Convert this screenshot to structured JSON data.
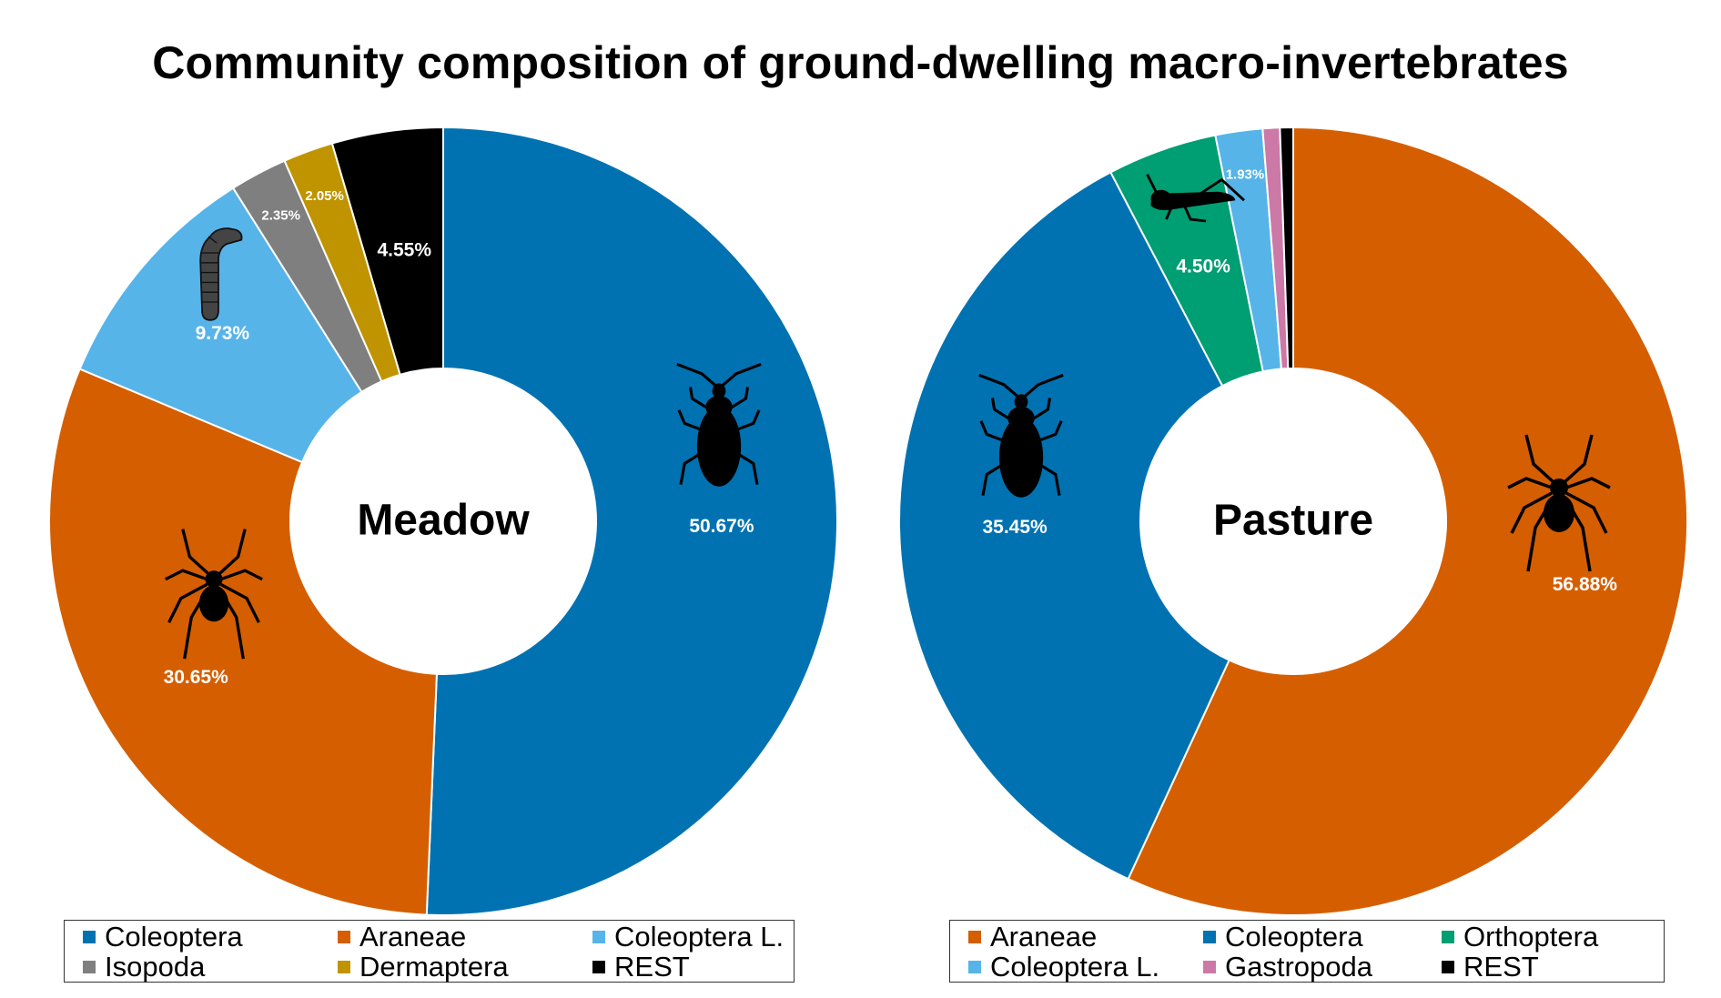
{
  "title": "Community composition of ground-dwelling macro-invertebrates",
  "chart_data": [
    {
      "type": "pie",
      "donut": true,
      "center_label": "Meadow",
      "slices": [
        {
          "name": "Coleoptera",
          "value": 50.67,
          "label": "50.67%",
          "color": "#0072B2"
        },
        {
          "name": "Araneae",
          "value": 30.65,
          "label": "30.65%",
          "color": "#D55E00"
        },
        {
          "name": "Coleoptera L.",
          "value": 9.73,
          "label": "9.73%",
          "color": "#56B4E9"
        },
        {
          "name": "Isopoda",
          "value": 2.35,
          "label": "2.35%",
          "color": "#7F7F7F"
        },
        {
          "name": "Dermaptera",
          "value": 2.05,
          "label": "2.05%",
          "color": "#C09400"
        },
        {
          "name": "REST",
          "value": 4.55,
          "label": "4.55%",
          "color": "#000000"
        }
      ],
      "legend": [
        "Coleoptera",
        "Araneae",
        "Coleoptera L.",
        "Isopoda",
        "Dermaptera",
        "REST"
      ],
      "icons": [
        "beetle-icon",
        "spider-icon",
        "larva-icon"
      ]
    },
    {
      "type": "pie",
      "donut": true,
      "center_label": "Pasture",
      "slices": [
        {
          "name": "Araneae",
          "value": 56.88,
          "label": "56.88%",
          "color": "#D55E00"
        },
        {
          "name": "Coleoptera",
          "value": 35.45,
          "label": "35.45%",
          "color": "#0072B2"
        },
        {
          "name": "Orthoptera",
          "value": 4.5,
          "label": "4.50%",
          "color": "#009E73"
        },
        {
          "name": "Coleoptera L.",
          "value": 1.93,
          "label": "1.93%",
          "color": "#56B4E9"
        },
        {
          "name": "Gastropoda",
          "value": 0.7,
          "label": "",
          "color": "#CC79A7"
        },
        {
          "name": "REST",
          "value": 0.54,
          "label": "",
          "color": "#000000"
        }
      ],
      "legend": [
        "Araneae",
        "Coleoptera",
        "Orthoptera",
        "Coleoptera L.",
        "Gastropoda",
        "REST"
      ],
      "icons": [
        "beetle-icon",
        "spider-icon",
        "grasshopper-icon"
      ]
    }
  ]
}
